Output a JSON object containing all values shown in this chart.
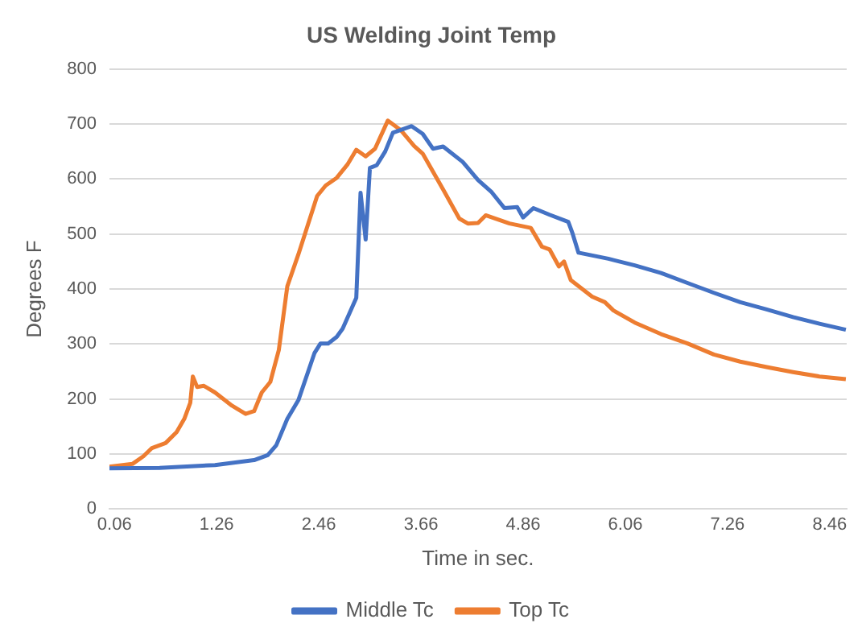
{
  "chart_data": {
    "type": "line",
    "title": "US Welding Joint Temp",
    "xlabel": "Time in sec.",
    "ylabel": "Degrees F",
    "xlim": [
      0,
      8.66
    ],
    "xticks": [
      0.06,
      1.26,
      2.46,
      3.66,
      4.86,
      6.06,
      7.26,
      8.46
    ],
    "ylim": [
      0,
      800
    ],
    "yticks": [
      0,
      100,
      200,
      300,
      400,
      500,
      600,
      700,
      800
    ],
    "grid": "y",
    "legend": "bottom",
    "marker": "none",
    "line_style": "solid",
    "series": [
      {
        "name": "Middle Tc",
        "color": "#4472c4",
        "x": [
          0,
          0.59,
          1.24,
          1.7,
          1.86,
          1.96,
          2.09,
          2.22,
          2.41,
          2.48,
          2.57,
          2.67,
          2.74,
          2.9,
          2.95,
          3.01,
          3.06,
          3.14,
          3.24,
          3.33,
          3.55,
          3.68,
          3.8,
          3.92,
          4.15,
          4.33,
          4.49,
          4.64,
          4.79,
          4.86,
          4.98,
          5.17,
          5.39,
          5.44,
          5.51,
          5.86,
          6.17,
          6.48,
          6.79,
          7.1,
          7.41,
          7.72,
          8.03,
          8.34,
          8.65
        ],
        "values": [
          74,
          75,
          80,
          89,
          98,
          116,
          164,
          198,
          284,
          301,
          301,
          313,
          328,
          384,
          575,
          490,
          620,
          625,
          650,
          684,
          696,
          682,
          655,
          659,
          631,
          598,
          576,
          547,
          549,
          530,
          547,
          535,
          522,
          501,
          466,
          455,
          443,
          429,
          411,
          393,
          376,
          363,
          349,
          337,
          326
        ]
      },
      {
        "name": "Top Tc",
        "color": "#ed7d31",
        "x": [
          0,
          0.27,
          0.4,
          0.5,
          0.66,
          0.79,
          0.88,
          0.95,
          0.98,
          1.03,
          1.11,
          1.24,
          1.44,
          1.6,
          1.7,
          1.79,
          1.89,
          1.99,
          2.09,
          2.22,
          2.44,
          2.54,
          2.67,
          2.8,
          2.9,
          3.01,
          3.12,
          3.27,
          3.42,
          3.58,
          3.68,
          3.93,
          4.11,
          4.21,
          4.33,
          4.42,
          4.7,
          4.95,
          5.08,
          5.17,
          5.28,
          5.34,
          5.42,
          5.67,
          5.82,
          5.92,
          6.17,
          6.48,
          6.79,
          7.1,
          7.41,
          7.72,
          8.03,
          8.34,
          8.65
        ],
        "values": [
          77,
          82,
          96,
          111,
          120,
          140,
          164,
          193,
          241,
          222,
          224,
          212,
          188,
          173,
          178,
          212,
          231,
          289,
          405,
          463,
          569,
          588,
          602,
          627,
          653,
          641,
          655,
          706,
          689,
          660,
          646,
          578,
          528,
          519,
          520,
          534,
          519,
          511,
          477,
          472,
          441,
          450,
          416,
          386,
          376,
          361,
          339,
          318,
          301,
          281,
          268,
          258,
          249,
          241,
          236
        ]
      }
    ]
  }
}
